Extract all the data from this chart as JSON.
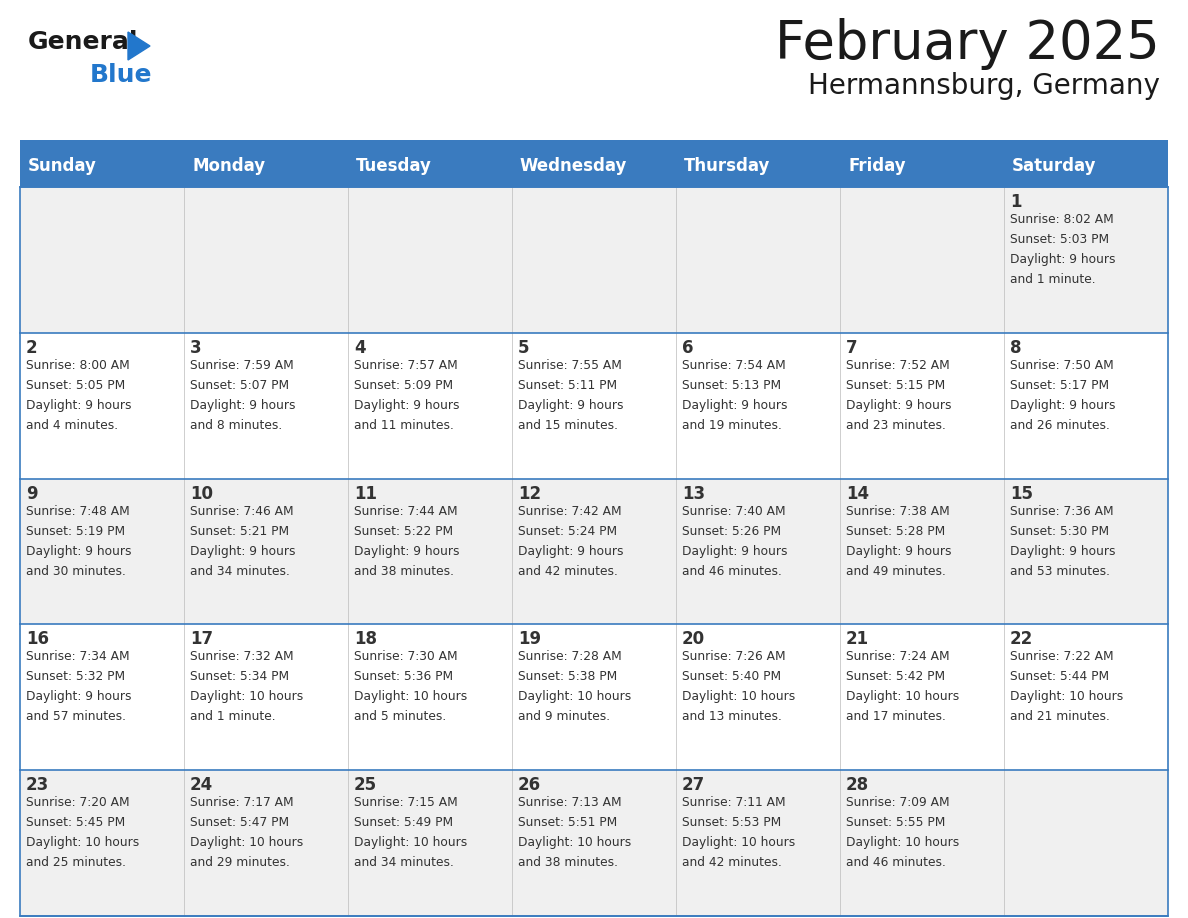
{
  "title": "February 2025",
  "subtitle": "Hermannsburg, Germany",
  "header_color": "#3A7BBF",
  "header_text_color": "#FFFFFF",
  "days_of_week": [
    "Sunday",
    "Monday",
    "Tuesday",
    "Wednesday",
    "Thursday",
    "Friday",
    "Saturday"
  ],
  "background_color": "#FFFFFF",
  "cell_bg_even": "#F0F0F0",
  "cell_bg_odd": "#FFFFFF",
  "border_color": "#3A7BBF",
  "text_color": "#333333",
  "title_color": "#1a1a1a",
  "logo_general_color": "#1a1a1a",
  "logo_blue_color": "#2277CC",
  "logo_triangle_color": "#2277CC",
  "calendar_data": [
    [
      null,
      null,
      null,
      null,
      null,
      null,
      {
        "day": 1,
        "sunrise": "8:02 AM",
        "sunset": "5:03 PM",
        "daylight": "9 hours and 1 minute."
      }
    ],
    [
      {
        "day": 2,
        "sunrise": "8:00 AM",
        "sunset": "5:05 PM",
        "daylight": "9 hours and 4 minutes."
      },
      {
        "day": 3,
        "sunrise": "7:59 AM",
        "sunset": "5:07 PM",
        "daylight": "9 hours and 8 minutes."
      },
      {
        "day": 4,
        "sunrise": "7:57 AM",
        "sunset": "5:09 PM",
        "daylight": "9 hours and 11 minutes."
      },
      {
        "day": 5,
        "sunrise": "7:55 AM",
        "sunset": "5:11 PM",
        "daylight": "9 hours and 15 minutes."
      },
      {
        "day": 6,
        "sunrise": "7:54 AM",
        "sunset": "5:13 PM",
        "daylight": "9 hours and 19 minutes."
      },
      {
        "day": 7,
        "sunrise": "7:52 AM",
        "sunset": "5:15 PM",
        "daylight": "9 hours and 23 minutes."
      },
      {
        "day": 8,
        "sunrise": "7:50 AM",
        "sunset": "5:17 PM",
        "daylight": "9 hours and 26 minutes."
      }
    ],
    [
      {
        "day": 9,
        "sunrise": "7:48 AM",
        "sunset": "5:19 PM",
        "daylight": "9 hours and 30 minutes."
      },
      {
        "day": 10,
        "sunrise": "7:46 AM",
        "sunset": "5:21 PM",
        "daylight": "9 hours and 34 minutes."
      },
      {
        "day": 11,
        "sunrise": "7:44 AM",
        "sunset": "5:22 PM",
        "daylight": "9 hours and 38 minutes."
      },
      {
        "day": 12,
        "sunrise": "7:42 AM",
        "sunset": "5:24 PM",
        "daylight": "9 hours and 42 minutes."
      },
      {
        "day": 13,
        "sunrise": "7:40 AM",
        "sunset": "5:26 PM",
        "daylight": "9 hours and 46 minutes."
      },
      {
        "day": 14,
        "sunrise": "7:38 AM",
        "sunset": "5:28 PM",
        "daylight": "9 hours and 49 minutes."
      },
      {
        "day": 15,
        "sunrise": "7:36 AM",
        "sunset": "5:30 PM",
        "daylight": "9 hours and 53 minutes."
      }
    ],
    [
      {
        "day": 16,
        "sunrise": "7:34 AM",
        "sunset": "5:32 PM",
        "daylight": "9 hours and 57 minutes."
      },
      {
        "day": 17,
        "sunrise": "7:32 AM",
        "sunset": "5:34 PM",
        "daylight": "10 hours and 1 minute."
      },
      {
        "day": 18,
        "sunrise": "7:30 AM",
        "sunset": "5:36 PM",
        "daylight": "10 hours and 5 minutes."
      },
      {
        "day": 19,
        "sunrise": "7:28 AM",
        "sunset": "5:38 PM",
        "daylight": "10 hours and 9 minutes."
      },
      {
        "day": 20,
        "sunrise": "7:26 AM",
        "sunset": "5:40 PM",
        "daylight": "10 hours and 13 minutes."
      },
      {
        "day": 21,
        "sunrise": "7:24 AM",
        "sunset": "5:42 PM",
        "daylight": "10 hours and 17 minutes."
      },
      {
        "day": 22,
        "sunrise": "7:22 AM",
        "sunset": "5:44 PM",
        "daylight": "10 hours and 21 minutes."
      }
    ],
    [
      {
        "day": 23,
        "sunrise": "7:20 AM",
        "sunset": "5:45 PM",
        "daylight": "10 hours and 25 minutes."
      },
      {
        "day": 24,
        "sunrise": "7:17 AM",
        "sunset": "5:47 PM",
        "daylight": "10 hours and 29 minutes."
      },
      {
        "day": 25,
        "sunrise": "7:15 AM",
        "sunset": "5:49 PM",
        "daylight": "10 hours and 34 minutes."
      },
      {
        "day": 26,
        "sunrise": "7:13 AM",
        "sunset": "5:51 PM",
        "daylight": "10 hours and 38 minutes."
      },
      {
        "day": 27,
        "sunrise": "7:11 AM",
        "sunset": "5:53 PM",
        "daylight": "10 hours and 42 minutes."
      },
      {
        "day": 28,
        "sunrise": "7:09 AM",
        "sunset": "5:55 PM",
        "daylight": "10 hours and 46 minutes."
      },
      null
    ]
  ]
}
